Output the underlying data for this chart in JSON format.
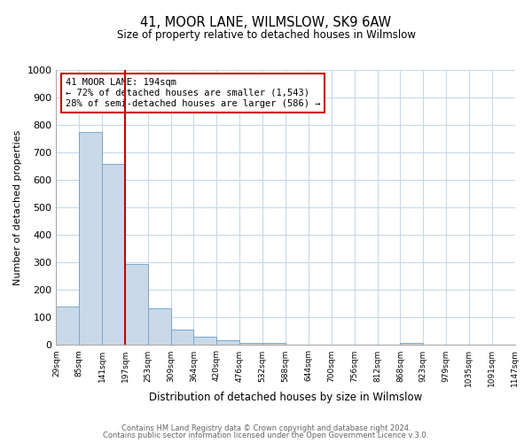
{
  "title": "41, MOOR LANE, WILMSLOW, SK9 6AW",
  "subtitle": "Size of property relative to detached houses in Wilmslow",
  "bar_values": [
    140,
    775,
    660,
    295,
    135,
    57,
    32,
    17,
    8,
    8,
    0,
    0,
    0,
    0,
    0,
    8,
    0,
    0,
    0,
    0
  ],
  "bin_edges": [
    29,
    85,
    141,
    197,
    253,
    309,
    364,
    420,
    476,
    532,
    588,
    644,
    700,
    756,
    812,
    868,
    923,
    979,
    1035,
    1091,
    1147
  ],
  "x_labels": [
    "29sqm",
    "85sqm",
    "141sqm",
    "197sqm",
    "253sqm",
    "309sqm",
    "364sqm",
    "420sqm",
    "476sqm",
    "532sqm",
    "588sqm",
    "644sqm",
    "700sqm",
    "756sqm",
    "812sqm",
    "868sqm",
    "923sqm",
    "979sqm",
    "1035sqm",
    "1091sqm",
    "1147sqm"
  ],
  "bar_color": "#c9d9e8",
  "bar_edge_color": "#7ba7c8",
  "ylabel": "Number of detached properties",
  "xlabel": "Distribution of detached houses by size in Wilmslow",
  "ylim": [
    0,
    1000
  ],
  "yticks": [
    0,
    100,
    200,
    300,
    400,
    500,
    600,
    700,
    800,
    900,
    1000
  ],
  "property_line_x": 197,
  "property_line_color": "#cc0000",
  "annotation_title": "41 MOOR LANE: 194sqm",
  "annotation_line1": "← 72% of detached houses are smaller (1,543)",
  "annotation_line2": "28% of semi-detached houses are larger (586) →",
  "annotation_box_color": "#cc0000",
  "footer_line1": "Contains HM Land Registry data © Crown copyright and database right 2024.",
  "footer_line2": "Contains public sector information licensed under the Open Government Licence v.3.0.",
  "background_color": "#ffffff",
  "grid_color": "#c8d8e8"
}
